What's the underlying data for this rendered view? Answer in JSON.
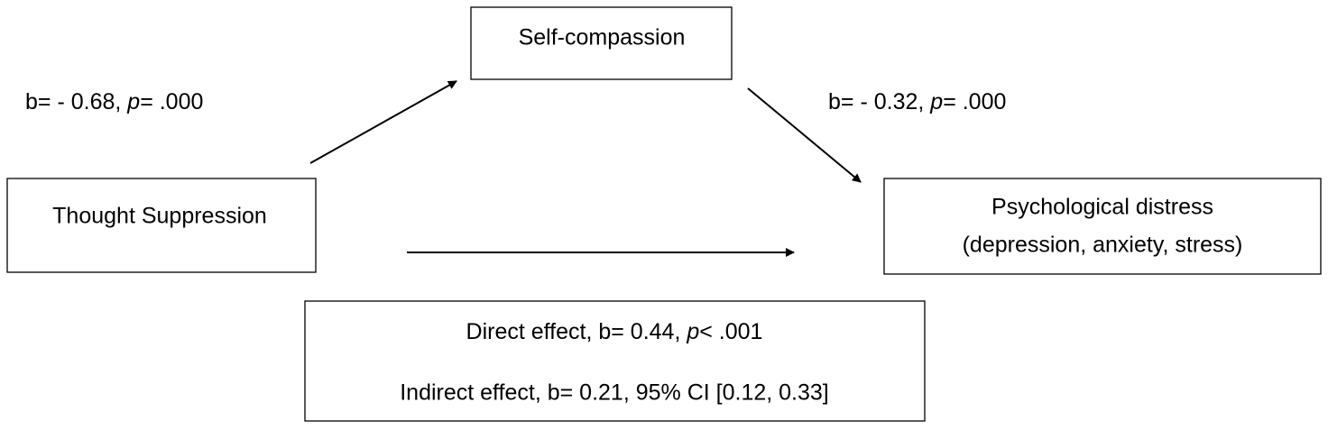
{
  "nodes": [
    {
      "label": "Self-compassion"
    },
    {
      "label": "Thought Suppression"
    },
    {
      "lines": [
        "Psychological distress",
        "(depression, anxiety, stress)"
      ]
    }
  ],
  "paths": {
    "a": {
      "parts": [
        "b= - 0.68, ",
        "p",
        "= .000"
      ]
    },
    "b": {
      "parts": [
        "b= - 0.32, ",
        "p",
        "= .000"
      ]
    }
  },
  "effects": {
    "direct": {
      "parts": [
        "Direct effect, b= 0.44, ",
        "p",
        "< .001"
      ]
    },
    "indirect": "Indirect effect, b= 0.21, 95% CI [0.12, 0.33]"
  }
}
